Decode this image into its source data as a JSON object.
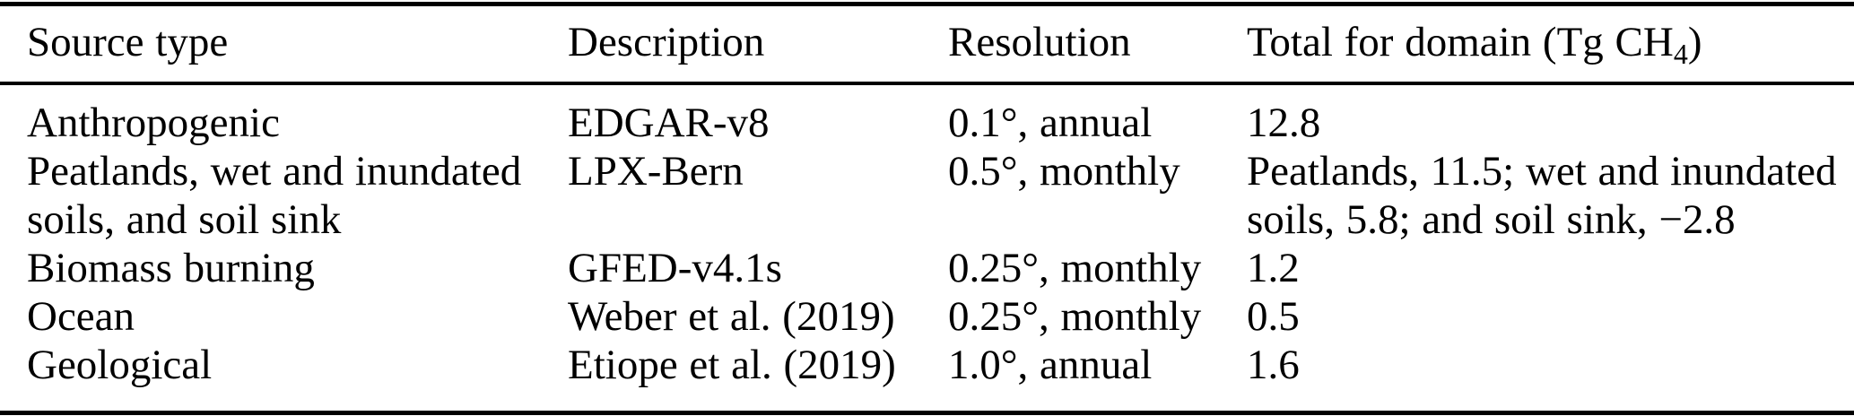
{
  "page": {
    "background_color": "#ffffff",
    "text_color": "#000000",
    "rule_color": "#000000"
  },
  "table": {
    "columns": [
      {
        "label": "Source type"
      },
      {
        "label": "Description"
      },
      {
        "label": "Resolution"
      }
    ],
    "total_column_header": {
      "prefix": "Total for domain (Tg CH",
      "subscript": "4",
      "suffix": ")"
    },
    "rows": [
      {
        "source_type": "Anthropogenic",
        "description": "EDGAR-v8",
        "resolution": "0.1°, annual",
        "total": "12.8"
      },
      {
        "source_type": "Peatlands, wet and inundated soils, and soil sink",
        "description": "LPX-Bern",
        "resolution": "0.5°, monthly",
        "total": "Peatlands, 11.5; wet and inundated soils, 5.8; and soil sink, −2.8"
      },
      {
        "source_type": "Biomass burning",
        "description": "GFED-v4.1s",
        "resolution": "0.25°, monthly",
        "total": "1.2"
      },
      {
        "source_type": "Ocean",
        "description": "Weber et al. (2019)",
        "resolution": "0.25°, monthly",
        "total": "0.5"
      },
      {
        "source_type": "Geological",
        "description": "Etiope et al. (2019)",
        "resolution": "1.0°, annual",
        "total": "1.6"
      }
    ]
  }
}
